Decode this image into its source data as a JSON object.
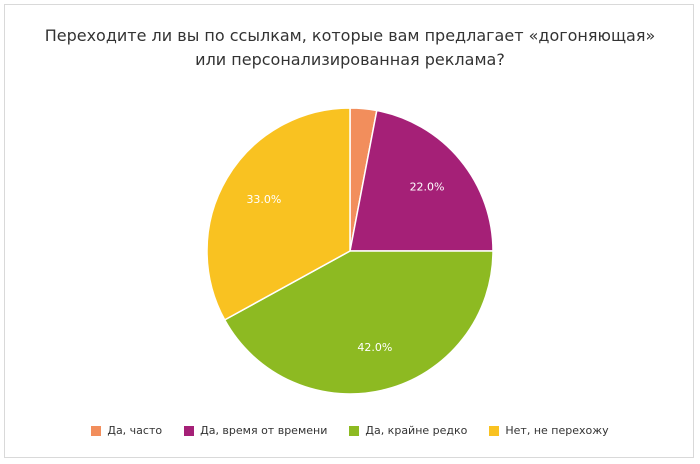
{
  "chart_data": {
    "type": "pie",
    "title_lines": [
      "Переходите ли вы по ссылкам, которые вам предлагает «догоняющая»",
      "или персонализированная реклама?"
    ],
    "series": [
      {
        "name": "Да, часто",
        "value": 3.0,
        "label": "",
        "color": "#f28e5c"
      },
      {
        "name": "Да, время от времени",
        "value": 22.0,
        "label": "22.0%",
        "color": "#a52077"
      },
      {
        "name": "Да, крайне редко",
        "value": 42.0,
        "label": "42.0%",
        "color": "#8dba22"
      },
      {
        "name": "Нет, не перехожу",
        "value": 33.0,
        "label": "33.0%",
        "color": "#f9c221"
      }
    ],
    "start_angle": "top, clockwise",
    "legend_position": "bottom"
  }
}
